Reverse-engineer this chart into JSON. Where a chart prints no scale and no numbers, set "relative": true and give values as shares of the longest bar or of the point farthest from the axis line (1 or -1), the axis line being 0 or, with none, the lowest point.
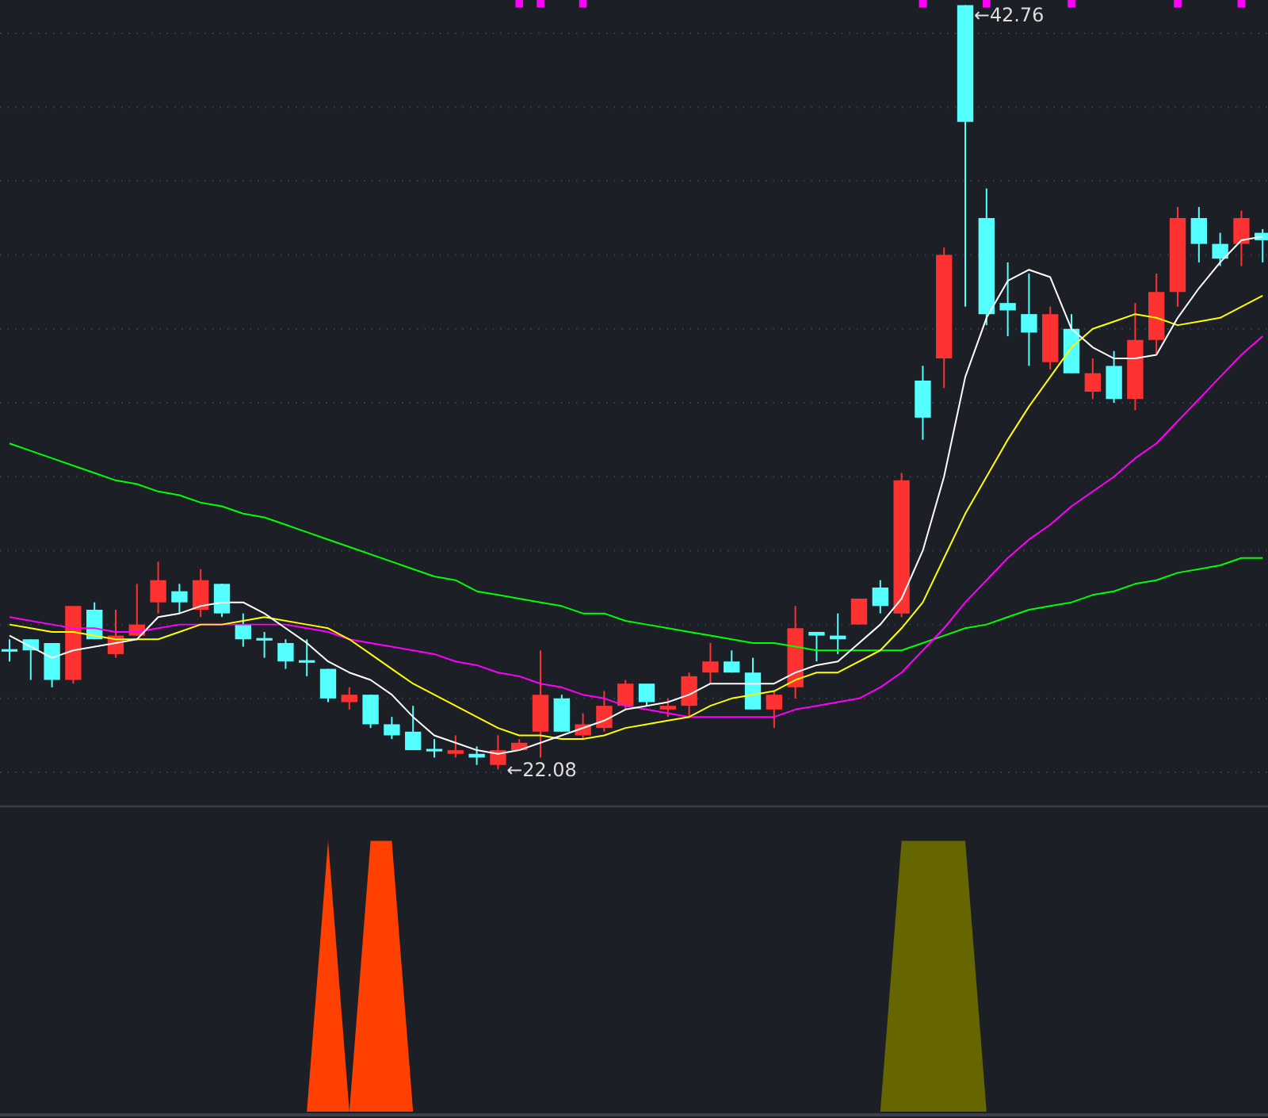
{
  "chart_data": [
    {
      "type": "candlestick",
      "categories": [
        null,
        null,
        null,
        null,
        null,
        null,
        null,
        null,
        null,
        null,
        null,
        null,
        null,
        null,
        null,
        null,
        null,
        null,
        null,
        null,
        null,
        null,
        null,
        null,
        null,
        null,
        null,
        null,
        null,
        null,
        null,
        null,
        null,
        null,
        null,
        null,
        null,
        null,
        null,
        null,
        null,
        null,
        null,
        null,
        null,
        null,
        null,
        null,
        null,
        null,
        null,
        null,
        null,
        null,
        null,
        null,
        null,
        null,
        null,
        null
      ],
      "ohlc": [
        [
          25.3,
          25.6,
          25.0,
          25.3
        ],
        [
          25.6,
          25.6,
          24.5,
          25.3
        ],
        [
          25.5,
          25.5,
          24.3,
          24.5
        ],
        [
          24.5,
          26.5,
          24.4,
          26.5
        ],
        [
          26.4,
          26.6,
          25.6,
          25.6
        ],
        [
          25.2,
          26.4,
          25.1,
          25.7
        ],
        [
          25.7,
          27.1,
          25.7,
          26.0
        ],
        [
          26.6,
          27.7,
          26.3,
          27.2
        ],
        [
          26.9,
          27.1,
          26.3,
          26.6
        ],
        [
          26.4,
          27.5,
          26.2,
          27.2
        ],
        [
          27.1,
          27.1,
          26.2,
          26.3
        ],
        [
          26.0,
          26.3,
          25.4,
          25.6
        ],
        [
          25.6,
          25.8,
          25.1,
          25.6
        ],
        [
          25.5,
          25.6,
          24.8,
          25.0
        ],
        [
          25.0,
          25.6,
          24.6,
          25.0
        ],
        [
          24.8,
          24.8,
          23.9,
          24.0
        ],
        [
          23.9,
          24.3,
          23.7,
          24.1
        ],
        [
          24.1,
          24.1,
          23.2,
          23.3
        ],
        [
          23.3,
          23.5,
          22.9,
          23.0
        ],
        [
          23.1,
          23.8,
          22.6,
          22.6
        ],
        [
          22.6,
          22.9,
          22.4,
          22.6
        ],
        [
          22.5,
          23.0,
          22.4,
          22.6
        ],
        [
          22.5,
          22.7,
          22.2,
          22.4
        ],
        [
          22.2,
          23.0,
          22.08,
          22.6
        ],
        [
          22.6,
          22.9,
          22.6,
          22.8
        ],
        [
          23.1,
          25.3,
          22.4,
          24.1
        ],
        [
          24.0,
          24.1,
          23.1,
          23.1
        ],
        [
          23.0,
          23.6,
          22.9,
          23.3
        ],
        [
          23.2,
          24.2,
          23.1,
          23.8
        ],
        [
          23.8,
          24.5,
          23.7,
          24.4
        ],
        [
          24.4,
          24.4,
          23.8,
          23.9
        ],
        [
          23.7,
          24.0,
          23.5,
          23.8
        ],
        [
          23.8,
          24.7,
          23.5,
          24.6
        ],
        [
          24.7,
          25.5,
          24.4,
          25.0
        ],
        [
          25.0,
          25.3,
          24.7,
          24.7
        ],
        [
          24.7,
          25.1,
          23.7,
          23.7
        ],
        [
          23.7,
          24.2,
          23.2,
          24.1
        ],
        [
          24.3,
          26.5,
          24.0,
          25.9
        ],
        [
          25.8,
          25.8,
          25.0,
          25.7
        ],
        [
          25.7,
          26.3,
          25.2,
          25.6
        ],
        [
          26.0,
          26.7,
          26.0,
          26.7
        ],
        [
          27.0,
          27.2,
          26.3,
          26.5
        ],
        [
          26.3,
          30.1,
          26.2,
          29.9
        ],
        [
          32.6,
          33.0,
          31.0,
          31.6
        ],
        [
          33.2,
          36.2,
          32.4,
          36.0
        ],
        [
          42.76,
          42.76,
          34.6,
          39.6
        ],
        [
          37.0,
          37.8,
          34.1,
          34.4
        ],
        [
          34.7,
          35.8,
          33.8,
          34.5
        ],
        [
          34.4,
          35.5,
          33.0,
          33.9
        ],
        [
          33.1,
          34.6,
          32.9,
          34.4
        ],
        [
          34.0,
          34.4,
          32.8,
          32.8
        ],
        [
          32.3,
          33.2,
          32.1,
          32.8
        ],
        [
          33.0,
          33.4,
          32.0,
          32.1
        ],
        [
          32.1,
          34.7,
          31.8,
          33.7
        ],
        [
          33.7,
          35.5,
          33.3,
          35.0
        ],
        [
          35.0,
          37.3,
          34.6,
          37.0
        ],
        [
          37.0,
          37.3,
          35.8,
          36.3
        ],
        [
          36.3,
          36.6,
          35.7,
          35.9
        ],
        [
          36.3,
          37.2,
          35.7,
          37.0
        ],
        [
          36.6,
          36.7,
          35.8,
          36.4
        ]
      ],
      "colors": [
        "#54ffff",
        "#54ffff",
        "#54ffff",
        "#ff3232",
        "#54ffff",
        "#ff3232",
        "#ff3232",
        "#ff3232",
        "#54ffff",
        "#ff3232",
        "#54ffff",
        "#54ffff",
        "#54ffff",
        "#54ffff",
        "#54ffff",
        "#54ffff",
        "#ff3232",
        "#54ffff",
        "#54ffff",
        "#54ffff",
        "#54ffff",
        "#ff3232",
        "#54ffff",
        "#ff3232",
        "#ff3232",
        "#ff3232",
        "#54ffff",
        "#ff3232",
        "#ff3232",
        "#ff3232",
        "#54ffff",
        "#ff3232",
        "#ff3232",
        "#ff3232",
        "#54ffff",
        "#54ffff",
        "#ff3232",
        "#ff3232",
        "#54ffff",
        "#54ffff",
        "#ff3232",
        "#54ffff",
        "#ff3232",
        "#54ffff",
        "#ff3232",
        "#54ffff",
        "#54ffff",
        "#54ffff",
        "#54ffff",
        "#ff3232",
        "#54ffff",
        "#ff3232",
        "#54ffff",
        "#ff3232",
        "#ff3232",
        "#ff3232",
        "#54ffff",
        "#54ffff",
        "#ff3232",
        "#54ffff"
      ],
      "series": [
        {
          "type": "line",
          "color": "#00ff00",
          "values": [
            30.9,
            30.7,
            30.5,
            30.3,
            30.1,
            29.9,
            29.8,
            29.6,
            29.5,
            29.3,
            29.2,
            29.0,
            28.9,
            28.7,
            28.5,
            28.3,
            28.1,
            27.9,
            27.7,
            27.5,
            27.3,
            27.2,
            26.9,
            26.8,
            26.7,
            26.6,
            26.5,
            26.3,
            26.3,
            26.1,
            26.0,
            25.9,
            25.8,
            25.7,
            25.6,
            25.5,
            25.5,
            25.4,
            25.3,
            25.3,
            25.3,
            25.3,
            25.3,
            25.5,
            25.7,
            25.9,
            26.0,
            26.2,
            26.4,
            26.5,
            26.6,
            26.8,
            26.9,
            27.1,
            27.2,
            27.4,
            27.5,
            27.6,
            27.8,
            27.8
          ]
        },
        {
          "type": "line",
          "color": "#ff00ff",
          "values": [
            26.2,
            26.1,
            26.0,
            25.9,
            25.9,
            25.8,
            25.8,
            25.9,
            26.0,
            26.0,
            26.0,
            26.0,
            26.0,
            26.0,
            25.9,
            25.8,
            25.6,
            25.5,
            25.4,
            25.3,
            25.2,
            25.0,
            24.9,
            24.7,
            24.6,
            24.4,
            24.3,
            24.1,
            24.0,
            23.8,
            23.7,
            23.6,
            23.5,
            23.5,
            23.5,
            23.5,
            23.5,
            23.7,
            23.8,
            23.9,
            24.0,
            24.3,
            24.7,
            25.3,
            25.9,
            26.6,
            27.2,
            27.8,
            28.3,
            28.7,
            29.2,
            29.6,
            30.0,
            30.5,
            30.9,
            31.5,
            32.1,
            32.7,
            33.3,
            33.8
          ]
        },
        {
          "type": "line",
          "color": "#ffff00",
          "values": [
            26.0,
            25.9,
            25.8,
            25.8,
            25.7,
            25.6,
            25.6,
            25.6,
            25.8,
            26.0,
            26.0,
            26.1,
            26.2,
            26.1,
            26.0,
            25.9,
            25.6,
            25.2,
            24.8,
            24.4,
            24.1,
            23.8,
            23.5,
            23.2,
            23.0,
            23.0,
            22.9,
            22.9,
            23.0,
            23.2,
            23.3,
            23.4,
            23.5,
            23.8,
            24.0,
            24.1,
            24.2,
            24.5,
            24.7,
            24.7,
            25.0,
            25.3,
            25.9,
            26.6,
            27.8,
            29.0,
            30.0,
            31.0,
            31.9,
            32.7,
            33.5,
            34.0,
            34.2,
            34.4,
            34.3,
            34.1,
            34.2,
            34.3,
            34.6,
            34.9
          ]
        },
        {
          "type": "line",
          "color": "#ffffff",
          "values": [
            25.7,
            25.4,
            25.1,
            25.3,
            25.4,
            25.5,
            25.6,
            26.2,
            26.3,
            26.5,
            26.6,
            26.6,
            26.3,
            25.9,
            25.5,
            25.0,
            24.7,
            24.5,
            24.1,
            23.5,
            23.0,
            22.8,
            22.6,
            22.5,
            22.6,
            22.8,
            23.0,
            23.2,
            23.4,
            23.7,
            23.8,
            23.9,
            24.1,
            24.4,
            24.4,
            24.4,
            24.4,
            24.7,
            24.9,
            25.0,
            25.5,
            26.0,
            26.7,
            28.0,
            30.0,
            32.7,
            34.3,
            35.3,
            35.6,
            35.4,
            34.0,
            33.5,
            33.2,
            33.2,
            33.3,
            34.3,
            35.1,
            35.8,
            36.4,
            36.5
          ]
        },
        {
          "type": "scatter",
          "color": "#ff00ff",
          "marker": "square",
          "values": [
            null,
            null,
            null,
            null,
            null,
            null,
            null,
            null,
            null,
            null,
            null,
            null,
            null,
            null,
            null,
            null,
            null,
            null,
            null,
            null,
            null,
            null,
            null,
            null,
            42.8,
            42.8,
            null,
            42.8,
            null,
            null,
            null,
            null,
            null,
            null,
            null,
            null,
            null,
            null,
            null,
            null,
            null,
            null,
            null,
            42.8,
            null,
            null,
            42.8,
            null,
            null,
            null,
            42.8,
            null,
            null,
            null,
            null,
            42.8,
            null,
            null,
            42.8,
            null
          ]
        }
      ],
      "ylim": [
        21.1,
        42.9
      ],
      "yticks": [
        {
          "value": 22,
          "label": null
        },
        {
          "value": 24,
          "label": null
        },
        {
          "value": 26,
          "label": null
        },
        {
          "value": 28,
          "label": null
        },
        {
          "value": 30,
          "label": null
        },
        {
          "value": 32,
          "label": null
        },
        {
          "value": 34,
          "label": null
        },
        {
          "value": 36,
          "label": null
        },
        {
          "value": 38,
          "label": null
        },
        {
          "value": 40,
          "label": null
        },
        {
          "value": 42,
          "label": null
        }
      ],
      "grid": "y",
      "annotations": [
        "←42.76",
        "←22.08"
      ]
    },
    {
      "type": "area",
      "relative": true,
      "categories": [
        null,
        null,
        null,
        null,
        null,
        null,
        null,
        null,
        null,
        null,
        null,
        null,
        null,
        null,
        null,
        null,
        null,
        null,
        null,
        null,
        null,
        null,
        null,
        null,
        null,
        null,
        null,
        null,
        null,
        null,
        null,
        null,
        null,
        null,
        null,
        null,
        null,
        null,
        null,
        null,
        null,
        null,
        null,
        null,
        null,
        null,
        null,
        null,
        null,
        null,
        null,
        null,
        null,
        null,
        null,
        null,
        null,
        null,
        null,
        null
      ],
      "series": [
        {
          "color": "#ff4000",
          "values": [
            null,
            null,
            null,
            null,
            null,
            null,
            null,
            null,
            null,
            null,
            null,
            null,
            null,
            null,
            0,
            1,
            0,
            1,
            1,
            0,
            null,
            null,
            null,
            null,
            null,
            null,
            null,
            null,
            null,
            null,
            null,
            null,
            null,
            null,
            null,
            null,
            null,
            null,
            null,
            null,
            null,
            null,
            null,
            null,
            null,
            null,
            null,
            null,
            null,
            null,
            null,
            null,
            null,
            null,
            null,
            null,
            null,
            null,
            null,
            null
          ]
        },
        {
          "color": "#666600",
          "values": [
            null,
            null,
            null,
            null,
            null,
            null,
            null,
            null,
            null,
            null,
            null,
            null,
            null,
            null,
            null,
            null,
            null,
            null,
            null,
            null,
            null,
            null,
            null,
            null,
            null,
            null,
            null,
            null,
            null,
            null,
            null,
            null,
            null,
            null,
            null,
            null,
            null,
            null,
            null,
            null,
            null,
            0,
            1,
            1,
            1,
            1,
            0,
            null,
            null,
            null,
            null,
            null,
            null,
            null,
            null,
            null,
            null,
            null,
            null,
            null
          ]
        }
      ]
    }
  ]
}
